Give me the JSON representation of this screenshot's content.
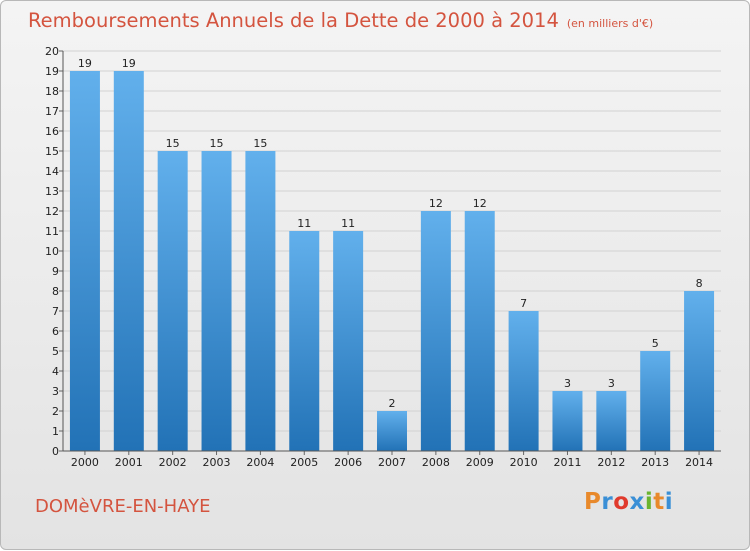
{
  "header": {
    "title": "Remboursements Annuels de la Dette de 2000 à 2014",
    "unit": "(en milliers d'€)"
  },
  "footer": {
    "town": "DOMèVRE-EN-HAYE",
    "logo_text": "Proxiti",
    "logo_colors": [
      "#e8892b",
      "#3a8fd6",
      "#e03a2c",
      "#3a8fd6",
      "#6ab42f",
      "#e8892b",
      "#3a8fd6"
    ]
  },
  "colors": {
    "bar_top": "#62b0ec",
    "bar_bottom": "#2272b6",
    "title": "#d4543f"
  },
  "chart_data": {
    "type": "bar",
    "title": "Remboursements Annuels de la Dette de 2000 à 2014",
    "subtitle": "(en milliers d'€)",
    "categories": [
      "2000",
      "2001",
      "2002",
      "2003",
      "2004",
      "2005",
      "2006",
      "2007",
      "2008",
      "2009",
      "2010",
      "2011",
      "2012",
      "2013",
      "2014"
    ],
    "values": [
      19,
      19,
      15,
      15,
      15,
      11,
      11,
      2,
      12,
      12,
      7,
      3,
      3,
      5,
      8
    ],
    "ylim": [
      0,
      20
    ],
    "yticks": [
      0,
      1,
      2,
      3,
      4,
      5,
      6,
      7,
      8,
      9,
      10,
      11,
      12,
      13,
      14,
      15,
      16,
      17,
      18,
      19,
      20
    ],
    "grid": true,
    "xlabel": "",
    "ylabel": ""
  }
}
